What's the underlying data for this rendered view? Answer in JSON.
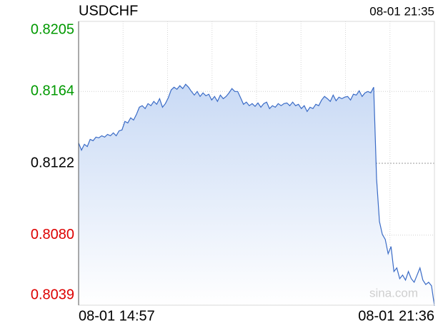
{
  "chart_data": {
    "type": "line",
    "title": "USDCHF",
    "timestamp": "08-01 21:35",
    "watermark": "sina.com",
    "color": "#3a6bc6",
    "fill": true,
    "up_color": "#009900",
    "down_color": "#dd0000",
    "grid": true,
    "ylim": [
      0.8039,
      0.8205
    ],
    "yticks": [
      0.8039,
      0.808,
      0.8122,
      0.8164,
      0.8205
    ],
    "ytick_labels": [
      "0.8039",
      "0.8080",
      "0.8122",
      "0.8164",
      "0.8205"
    ],
    "categories": [
      "08-01 14:57",
      null,
      null,
      null,
      null,
      null,
      null,
      null,
      null,
      null,
      null,
      null,
      null,
      null,
      null,
      null,
      null,
      null,
      null,
      null,
      null,
      null,
      null,
      null,
      null,
      null,
      null,
      null,
      null,
      null,
      null,
      null,
      null,
      null,
      null,
      null,
      null,
      null,
      null,
      null,
      null,
      null,
      null,
      null,
      null,
      null,
      null,
      null,
      null,
      null,
      null,
      null,
      null,
      null,
      null,
      null,
      null,
      null,
      null,
      null,
      null,
      null,
      null,
      null,
      null,
      null,
      null,
      null,
      null,
      null,
      null,
      null,
      null,
      null,
      null,
      null,
      null,
      null,
      null,
      null,
      null,
      null,
      null,
      null,
      null,
      null,
      null,
      null,
      null,
      null,
      null,
      null,
      null,
      null,
      null,
      null,
      null,
      null,
      null,
      null,
      null,
      null,
      null,
      null,
      null,
      null,
      null,
      null,
      null,
      null,
      null,
      null,
      null,
      null,
      null,
      null,
      null,
      null,
      null,
      null,
      null,
      null,
      null,
      "08-01 21:36"
    ],
    "values": [
      0.81339,
      0.81297,
      0.81331,
      0.81318,
      0.8136,
      0.81352,
      0.81373,
      0.81369,
      0.81381,
      0.81373,
      0.81389,
      0.81381,
      0.81398,
      0.81381,
      0.8141,
      0.81415,
      0.81465,
      0.81456,
      0.81486,
      0.81473,
      0.81506,
      0.81548,
      0.81557,
      0.8154,
      0.81569,
      0.81557,
      0.81582,
      0.81565,
      0.81598,
      0.81548,
      0.81569,
      0.81603,
      0.81649,
      0.81665,
      0.81653,
      0.81674,
      0.81657,
      0.81682,
      0.81665,
      0.8164,
      0.81619,
      0.8164,
      0.81611,
      0.81632,
      0.81615,
      0.81624,
      0.8159,
      0.81611,
      0.81582,
      0.81619,
      0.81598,
      0.81611,
      0.81632,
      0.81657,
      0.8164,
      0.8164,
      0.81603,
      0.81565,
      0.81578,
      0.81557,
      0.81569,
      0.81553,
      0.81573,
      0.81548,
      0.81569,
      0.81578,
      0.8154,
      0.81557,
      0.81548,
      0.81569,
      0.81557,
      0.81569,
      0.81573,
      0.81557,
      0.81578,
      0.81557,
      0.81565,
      0.8154,
      0.81557,
      0.81523,
      0.81548,
      0.8154,
      0.81565,
      0.81557,
      0.8159,
      0.81611,
      0.81598,
      0.81582,
      0.81619,
      0.81586,
      0.81607,
      0.81598,
      0.81607,
      0.81611,
      0.8159,
      0.81624,
      0.81619,
      0.81644,
      0.81611,
      0.81632,
      0.8164,
      0.81632,
      0.81665,
      0.8113,
      0.80879,
      0.80804,
      0.80775,
      0.80691,
      0.80733,
      0.80587,
      0.80608,
      0.80545,
      0.80566,
      0.80537,
      0.80587,
      0.80545,
      0.80524,
      0.80566,
      0.80608,
      0.80537,
      0.80511,
      0.80524,
      0.80503,
      0.80386
    ]
  }
}
